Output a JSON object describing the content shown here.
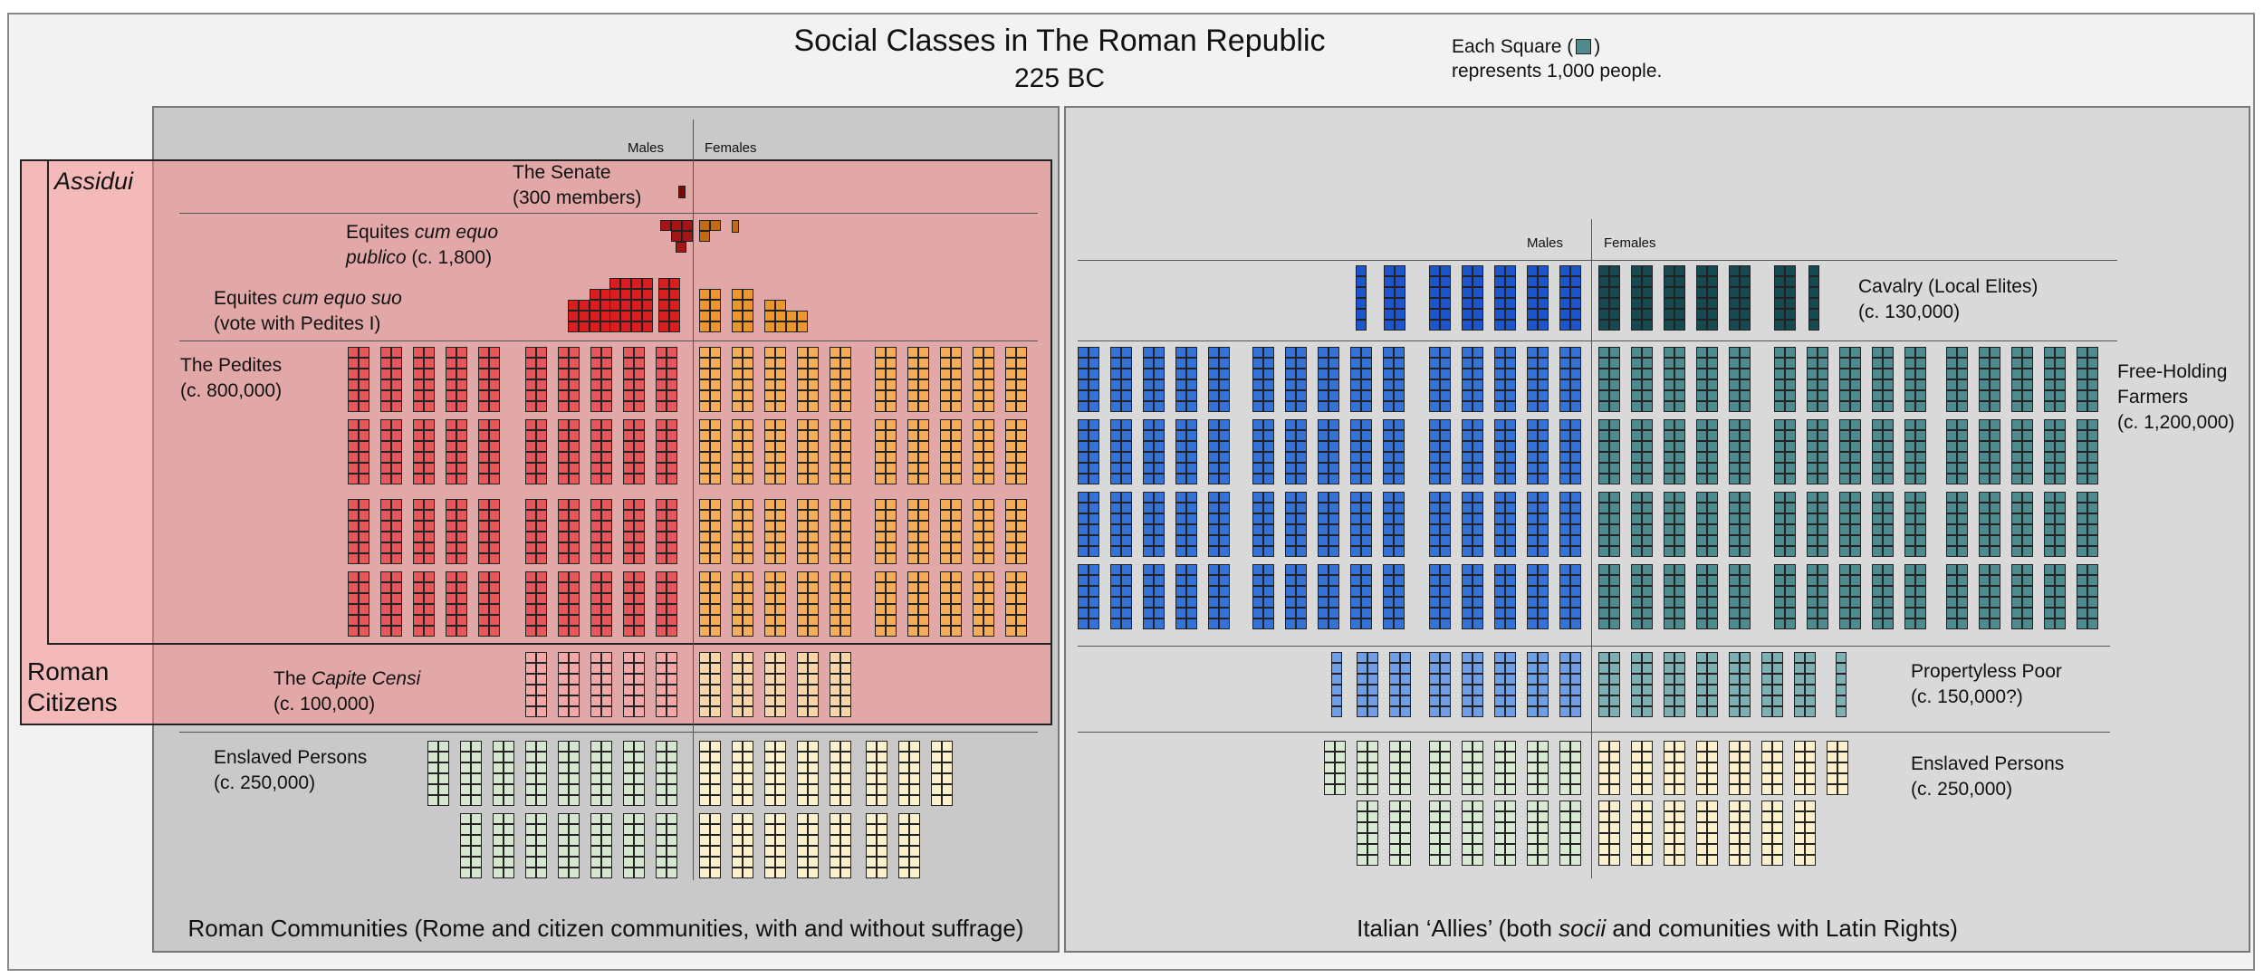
{
  "header": {
    "title": "Social Classes in The Roman Republic",
    "subtitle": "225 BC",
    "legend_prefix": "Each Square (",
    "legend_suffix": ")",
    "legend_line2": "represents 1,000 people."
  },
  "overlays": {
    "assidui": "Assidui",
    "roman_citizens_1": "Roman",
    "roman_citizens_2": "Citizens"
  },
  "roman": {
    "caption": "Roman Communities (Rome and citizen communities, with and without suffrage)",
    "males_label": "Males",
    "females_label": "Females",
    "senate": {
      "name": "The Senate",
      "count": "(300 members)"
    },
    "equites_publico": {
      "prefix": "Equites ",
      "italic": "cum equo",
      "line2_italic": "publico",
      "line2_rest": " (c. 1,800)"
    },
    "equites_suo": {
      "prefix": "Equites ",
      "italic": "cum equo suo",
      "line2": "(vote with Pedites I)"
    },
    "pedites": {
      "name": "The Pedites",
      "count": "(c. 800,000)"
    },
    "capite_censi": {
      "prefix": "The ",
      "italic": "Capite Censi",
      "count": "(c. 100,000)"
    },
    "enslaved": {
      "name": "Enslaved Persons",
      "count": "(c. 250,000)"
    }
  },
  "allies": {
    "caption_prefix": "Italian ‘Allies’ (both ",
    "caption_italic": "socii",
    "caption_suffix": " and comunities with Latin Rights)",
    "males_label": "Males",
    "females_label": "Females",
    "cavalry": {
      "name": "Cavalry (Local Elites)",
      "count": "(c. 130,000)"
    },
    "farmers": {
      "line1": "Free-Holding",
      "line2": "Farmers",
      "count": "(c. 1,200,000)"
    },
    "poor": {
      "name": "Propertyless Poor",
      "count": "(c.  150,000?)"
    },
    "enslaved": {
      "name": "Enslaved Persons",
      "count": "(c. 250,000)"
    }
  },
  "colors": {
    "senate": "#7a0a0a",
    "equites_publico_m": "#a51515",
    "equites_publico_f": "#c46a10",
    "equites_suo_m": "#d81e1e",
    "equites_suo_f": "#ec962e",
    "pedites_m": "#e4575a",
    "pedites_f": "#f6ad5a",
    "capite_m": "#f2a8a8",
    "capite_f": "#f7d7a9",
    "enslaved_roman_m": "#d5e6cf",
    "enslaved_roman_f": "#fbf0cc",
    "ally_cav_m": "#1c55cc",
    "ally_cav_f": "#164a50",
    "ally_farm_m": "#3572d8",
    "ally_farm_f": "#4d8b8f",
    "ally_poor_m": "#6e9fe6",
    "ally_poor_f": "#7eb0b3",
    "ally_enslaved_m": "#d8ead2",
    "ally_enslaved_f": "#fcf0cc"
  }
}
